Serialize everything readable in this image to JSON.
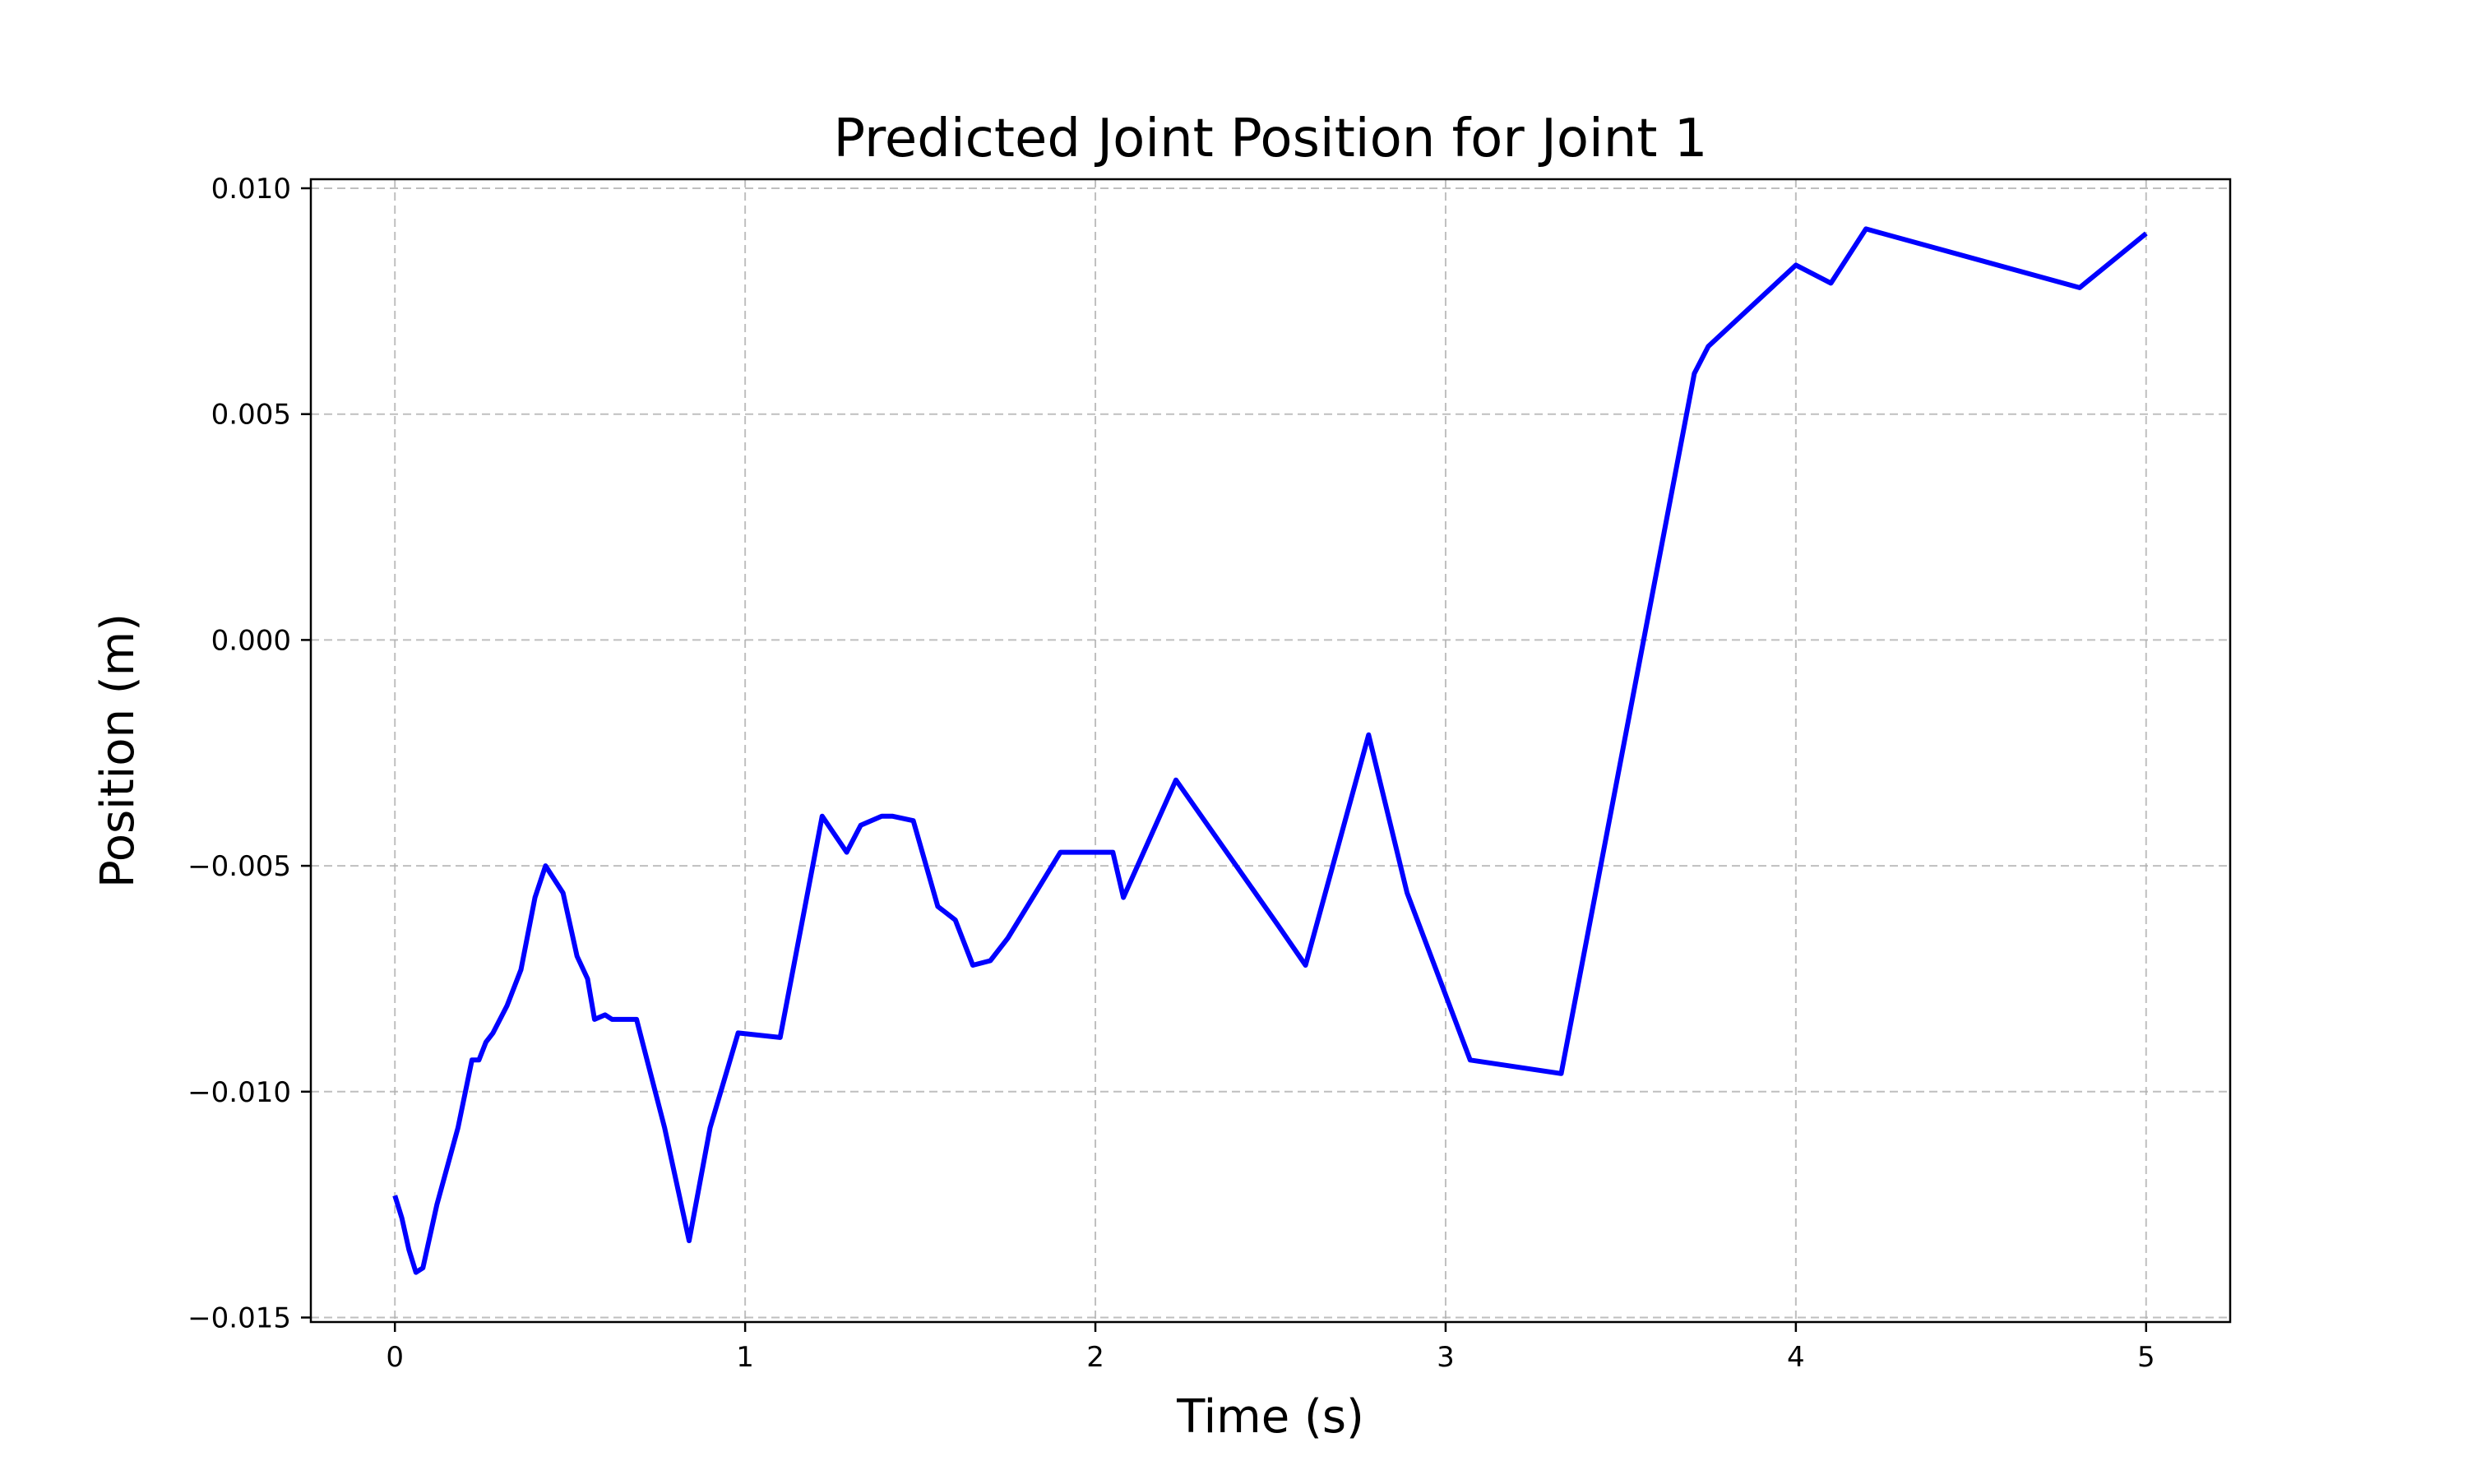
{
  "chart_data": {
    "type": "line",
    "title": "Predicted Joint Position for Joint 1",
    "xlabel": "Time (s)",
    "ylabel": "Position (m)",
    "xlim": [
      -0.24,
      5.24
    ],
    "ylim": [
      -0.0151,
      0.0102
    ],
    "xticks": [
      0,
      1,
      2,
      3,
      4,
      5
    ],
    "xtick_labels": [
      "0",
      "1",
      "2",
      "3",
      "4",
      "5"
    ],
    "yticks": [
      -0.015,
      -0.01,
      -0.005,
      0.0,
      0.005,
      0.01
    ],
    "ytick_labels": [
      "−0.015",
      "−0.010",
      "−0.005",
      "0.000",
      "0.005",
      "0.010"
    ],
    "grid": true,
    "grid_style": "dashed",
    "line_color": "#0000ff",
    "series": [
      {
        "x": [
          0.0,
          0.02,
          0.04,
          0.06,
          0.08,
          0.12,
          0.18,
          0.22,
          0.24,
          0.26,
          0.28,
          0.32,
          0.36,
          0.4,
          0.43,
          0.48,
          0.52,
          0.55,
          0.57,
          0.6,
          0.62,
          0.69,
          0.71,
          0.77,
          0.84,
          0.9,
          0.98,
          1.1,
          1.22,
          1.29,
          1.33,
          1.39,
          1.42,
          1.48,
          1.55,
          1.6,
          1.65,
          1.7,
          1.75,
          1.9,
          2.05,
          2.08,
          2.23,
          2.52,
          2.6,
          2.78,
          2.89,
          3.07,
          3.33,
          3.71,
          3.75,
          4.0,
          4.1,
          4.2,
          4.81,
          5.0
        ],
        "y": [
          -0.0123,
          -0.0128,
          -0.0135,
          -0.014,
          -0.0139,
          -0.0125,
          -0.0108,
          -0.0093,
          -0.0093,
          -0.0089,
          -0.0087,
          -0.0081,
          -0.0073,
          -0.0057,
          -0.005,
          -0.0056,
          -0.007,
          -0.0075,
          -0.0084,
          -0.0083,
          -0.0084,
          -0.0084,
          -0.009,
          -0.0108,
          -0.0133,
          -0.0108,
          -0.0087,
          -0.0088,
          -0.0039,
          -0.0047,
          -0.0041,
          -0.0039,
          -0.0039,
          -0.004,
          -0.0059,
          -0.0062,
          -0.0072,
          -0.0071,
          -0.0066,
          -0.0047,
          -0.0047,
          -0.0057,
          -0.0031,
          -0.0063,
          -0.0072,
          -0.0021,
          -0.0056,
          -0.0093,
          -0.0096,
          0.0059,
          0.0065,
          0.0083,
          0.0079,
          0.0091,
          0.0078,
          0.009
        ]
      }
    ]
  }
}
